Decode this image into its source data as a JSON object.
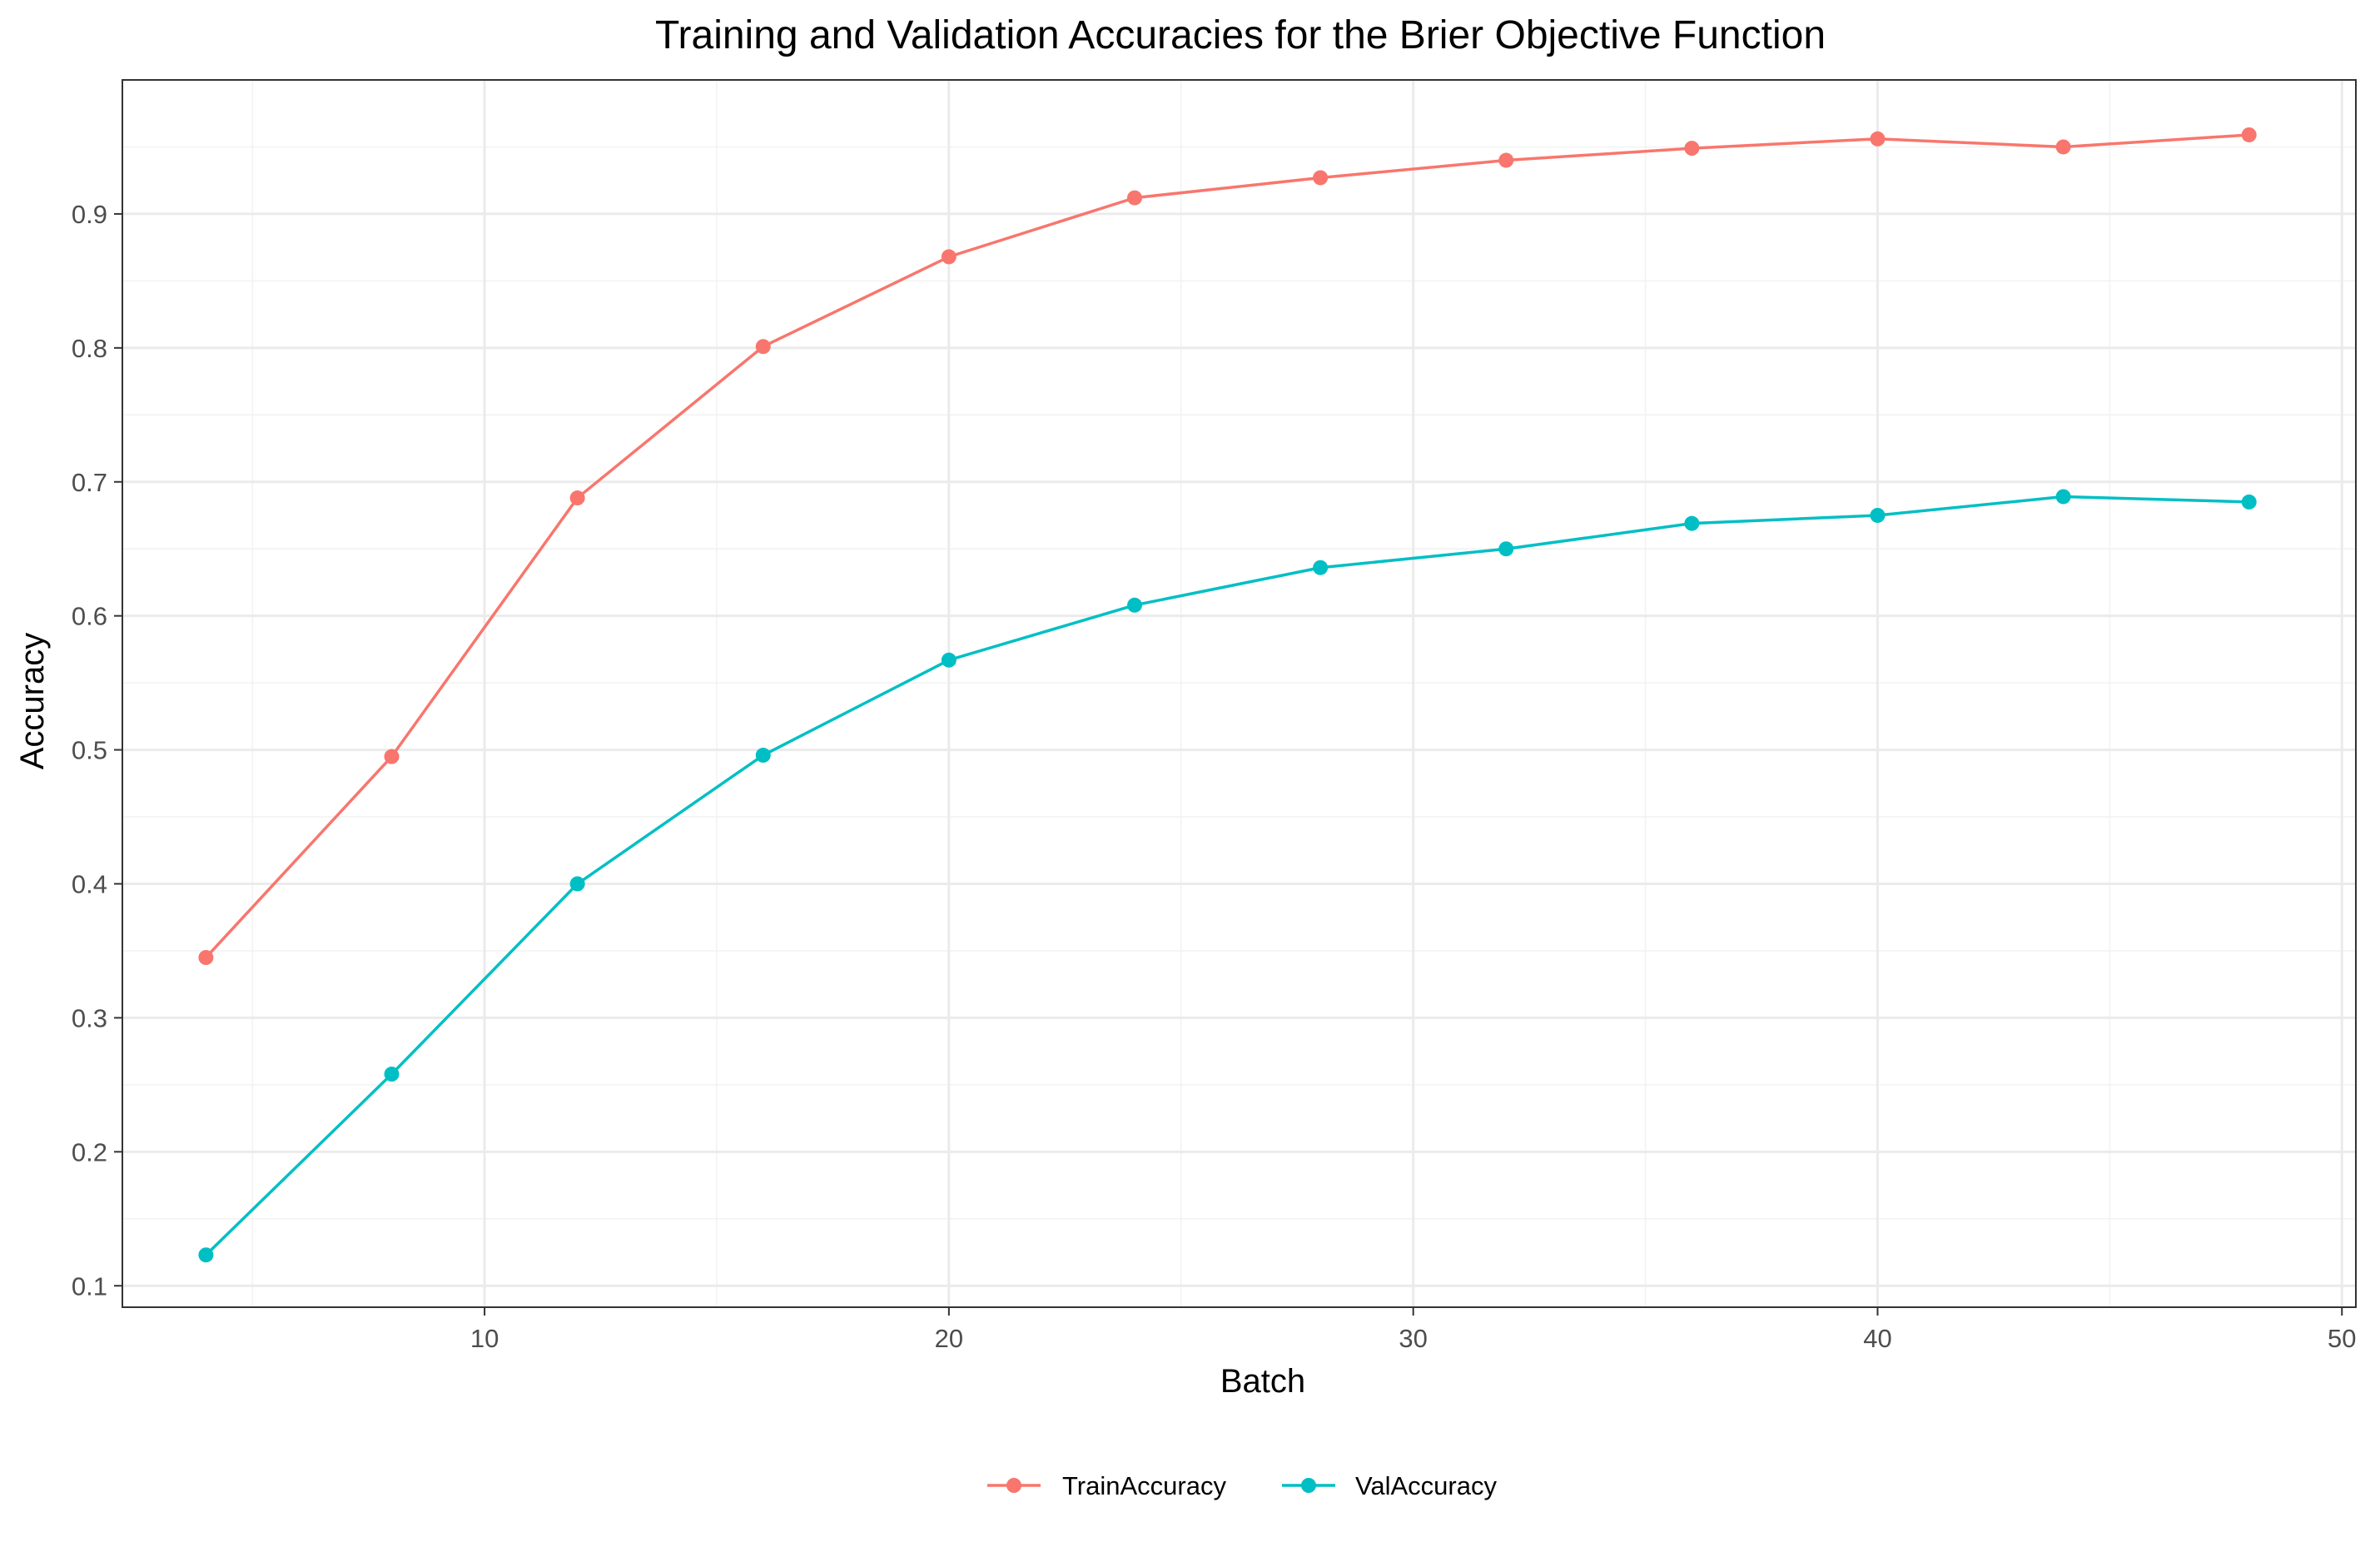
{
  "chart_data": {
    "type": "line",
    "title": "Training and Validation Accuracies for the Brier Objective Function",
    "xlabel": "Batch",
    "ylabel": "Accuracy",
    "xlim": [
      2.2,
      50.3
    ],
    "ylim": [
      0.084,
      1.0
    ],
    "x_ticks": [
      10,
      20,
      30,
      40,
      50
    ],
    "y_ticks": [
      0.1,
      0.2,
      0.3,
      0.4,
      0.5,
      0.6,
      0.7,
      0.8,
      0.9
    ],
    "x_tick_labels": [
      "10",
      "20",
      "30",
      "40",
      "50"
    ],
    "y_tick_labels": [
      "0.1",
      "0.2",
      "0.3",
      "0.4",
      "0.5",
      "0.6",
      "0.7",
      "0.8",
      "0.9"
    ],
    "grid": true,
    "legend_position": "bottom",
    "x": [
      4,
      8,
      12,
      16,
      20,
      24,
      28,
      32,
      36,
      40,
      44,
      48
    ],
    "series": [
      {
        "name": "TrainAccuracy",
        "color": "#F8766D",
        "values": [
          0.345,
          0.495,
          0.688,
          0.801,
          0.868,
          0.912,
          0.927,
          0.94,
          0.949,
          0.956,
          0.95,
          0.959
        ]
      },
      {
        "name": "ValAccuracy",
        "color": "#00BFC4",
        "values": [
          0.123,
          0.258,
          0.4,
          0.496,
          0.567,
          0.608,
          0.636,
          0.65,
          0.669,
          0.675,
          0.689,
          0.685
        ]
      }
    ]
  }
}
